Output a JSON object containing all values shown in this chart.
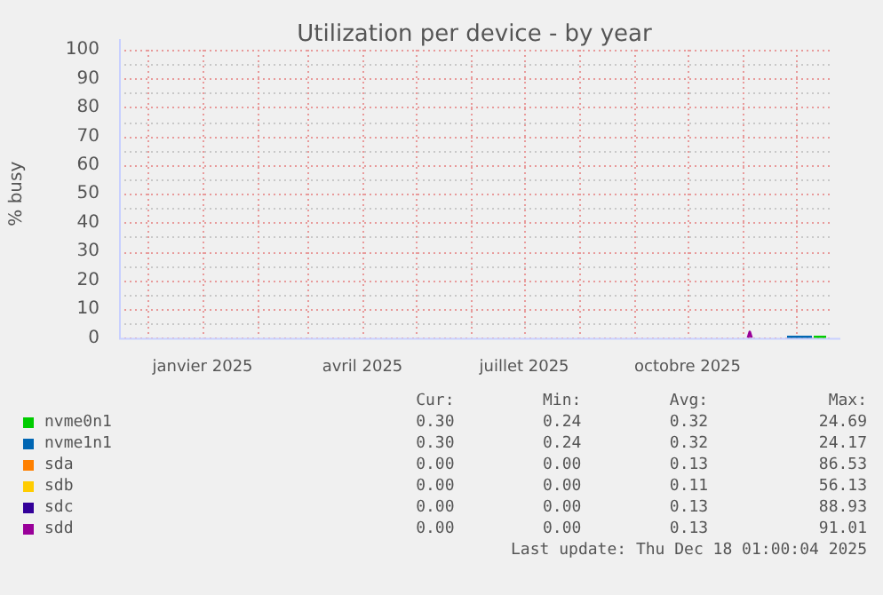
{
  "chart_data": {
    "type": "line",
    "title": "Utilization per device - by year",
    "ylabel": "% busy",
    "xlim": [
      "2024-11-15",
      "2025-12-20"
    ],
    "xticks": [
      {
        "value": "2024-12-01",
        "label": null
      },
      {
        "value": "2025-01-01",
        "label": "janvier 2025"
      },
      {
        "value": "2025-02-01",
        "label": null
      },
      {
        "value": "2025-03-01",
        "label": null
      },
      {
        "value": "2025-04-01",
        "label": "avril 2025"
      },
      {
        "value": "2025-05-01",
        "label": null
      },
      {
        "value": "2025-06-01",
        "label": null
      },
      {
        "value": "2025-07-01",
        "label": "juillet 2025"
      },
      {
        "value": "2025-08-01",
        "label": null
      },
      {
        "value": "2025-09-01",
        "label": null
      },
      {
        "value": "2025-10-01",
        "label": "octobre 2025"
      },
      {
        "value": "2025-11-01",
        "label": null
      },
      {
        "value": "2025-12-01",
        "label": null
      }
    ],
    "ylim": [
      0,
      100
    ],
    "yticks": [
      0,
      {
        "value": 5,
        "label": null
      },
      10,
      {
        "value": 15,
        "label": null
      },
      20,
      {
        "value": 25,
        "label": null
      },
      30,
      {
        "value": 35,
        "label": null
      },
      40,
      {
        "value": 45,
        "label": null
      },
      50,
      {
        "value": 55,
        "label": null
      },
      60,
      {
        "value": 65,
        "label": null
      },
      70,
      {
        "value": 75,
        "label": null
      },
      80,
      {
        "value": 85,
        "label": null
      },
      90,
      {
        "value": 95,
        "label": null
      },
      100
    ],
    "grid": true,
    "legend": "bottom",
    "marker": "none",
    "line_style": "solid",
    "series": [
      {
        "name": "nvme0n1",
        "color": "#00cc00",
        "x": [
          "2025-12-11",
          "2025-12-18"
        ],
        "values": [
          0.3,
          0.3
        ]
      },
      {
        "name": "nvme1n1",
        "color": "#0066b3",
        "x": [
          "2025-11-26",
          "2025-12-02",
          "2025-12-10"
        ],
        "values": [
          0.3,
          0.3,
          0.3
        ]
      },
      {
        "name": "sda",
        "color": "#ff8000"
      },
      {
        "name": "sdb",
        "color": "#ffcc00"
      },
      {
        "name": "sdc",
        "color": "#330099"
      },
      {
        "name": "sdd",
        "color": "#990099",
        "x": [
          "2025-11-04",
          "2025-11-05",
          "2025-11-06"
        ],
        "values": [
          0,
          2,
          0
        ]
      }
    ],
    "annotations": [
      "Cur:",
      "Min:",
      "Avg:",
      "Max:",
      "0.30",
      "0.24",
      "0.32",
      "24.69",
      "0.30",
      "0.24",
      "0.32",
      "24.17",
      "0.00",
      "0.00",
      "0.13",
      "86.53",
      "0.00",
      "0.00",
      "0.11",
      "56.13",
      "0.00",
      "0.00",
      "0.13",
      "88.93",
      "0.00",
      "0.00",
      "0.13",
      "91.01",
      "Last update: Thu Dec 18 01:00:04 2025"
    ]
  }
}
